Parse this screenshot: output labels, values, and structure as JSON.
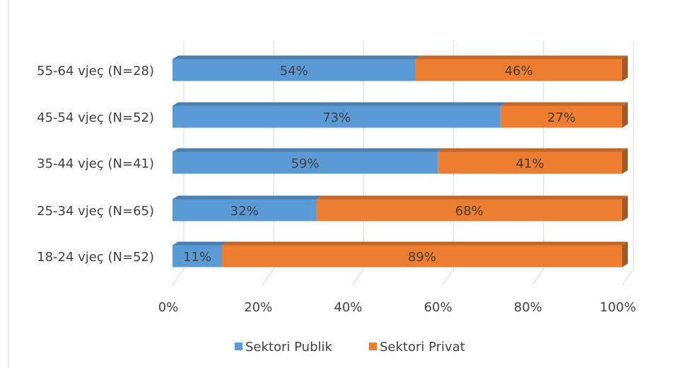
{
  "chart_data": {
    "type": "bar",
    "orientation": "horizontal",
    "stacked": true,
    "percent_stacked": true,
    "three_d": true,
    "categories": [
      "18-24 vjeç (N=52)",
      "25-34 vjeç (N=65)",
      "35-44 vjeç (N=41)",
      "45-54 vjeç (N=52)",
      "55-64 vjeç (N=28)"
    ],
    "series": [
      {
        "name": "Sektori Publik",
        "values": [
          11,
          32,
          59,
          73,
          54
        ],
        "labels": [
          "11%",
          "32%",
          "59%",
          "73%",
          "54%"
        ],
        "color": "#5b9bd5"
      },
      {
        "name": "Sektori Privat",
        "values": [
          89,
          68,
          41,
          27,
          46
        ],
        "labels": [
          "89%",
          "68%",
          "41%",
          "27%",
          "46%"
        ],
        "color": "#ed7d31"
      }
    ],
    "xlim": [
      0,
      100
    ],
    "xticks": [
      0,
      20,
      40,
      60,
      80,
      100
    ],
    "xtick_labels": [
      "0%",
      "20%",
      "40%",
      "60%",
      "80%",
      "100%"
    ],
    "grid": true,
    "legend_position": "bottom",
    "title": "",
    "xlabel": "",
    "ylabel": ""
  }
}
